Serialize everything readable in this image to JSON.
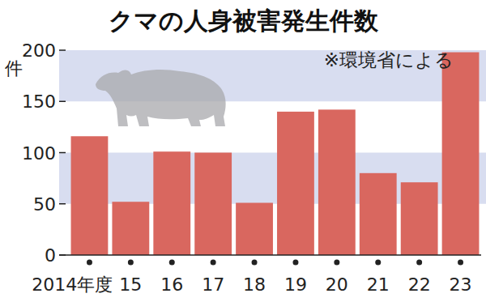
{
  "chart_data": {
    "type": "bar",
    "title": "クマの人身被害発生件数",
    "annotations": [
      "※環境省による"
    ],
    "ylabel": "件",
    "categories": [
      "2014年度",
      "15",
      "16",
      "17",
      "18",
      "19",
      "20",
      "21",
      "22",
      "23"
    ],
    "values": [
      116,
      52,
      101,
      100,
      51,
      140,
      142,
      80,
      71,
      198
    ],
    "color": "#d9675f",
    "ylim": [
      0,
      200
    ],
    "yticks": [
      0,
      50,
      100,
      150,
      200
    ],
    "grid": true
  }
}
